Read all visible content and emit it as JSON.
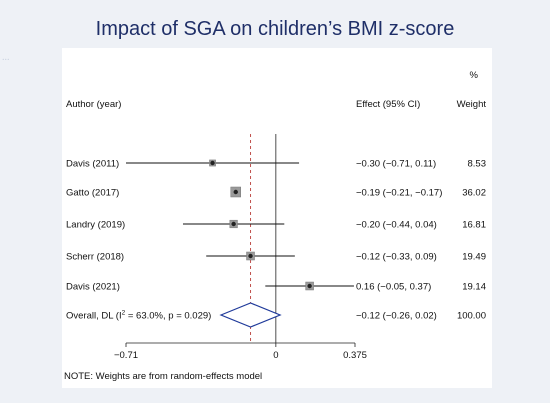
{
  "page": {
    "title": "Impact of SGA on children’s BMI z-score",
    "background_color": "#eef1f6",
    "title_color": "#1f2f68"
  },
  "chart_data": {
    "type": "forest",
    "header": {
      "author": "Author (year)",
      "effect": "Effect (95% CI)",
      "weight_unit": "%",
      "weight": "Weight"
    },
    "studies": [
      {
        "label": "Davis (2011)",
        "effect": -0.3,
        "lo": -0.71,
        "hi": 0.11,
        "effect_text": "−0.30 (−0.71, 0.11)",
        "weight": 8.53,
        "weight_text": "8.53"
      },
      {
        "label": "Gatto (2017)",
        "effect": -0.19,
        "lo": -0.21,
        "hi": -0.17,
        "effect_text": "−0.19 (−0.21, −0.17)",
        "weight": 36.02,
        "weight_text": "36.02"
      },
      {
        "label": "Landry (2019)",
        "effect": -0.2,
        "lo": -0.44,
        "hi": 0.04,
        "effect_text": "−0.20 (−0.44, 0.04)",
        "weight": 16.81,
        "weight_text": "16.81"
      },
      {
        "label": "Scherr (2018)",
        "effect": -0.12,
        "lo": -0.33,
        "hi": 0.09,
        "effect_text": "−0.12 (−0.33, 0.09)",
        "weight": 19.49,
        "weight_text": "19.49"
      },
      {
        "label": "Davis (2021)",
        "effect": 0.16,
        "lo": -0.05,
        "hi": 0.37,
        "effect_text": "0.16 (−0.05, 0.37)",
        "weight": 19.14,
        "weight_text": "19.14"
      }
    ],
    "overall": {
      "label_main": "Overall, DL (I",
      "label_sup": "2",
      "label_rest": " = 63.0%, p = 0.029)",
      "effect": -0.12,
      "lo": -0.26,
      "hi": 0.02,
      "effect_text": "−0.12 (−0.26, 0.02)",
      "weight_text": "100.00"
    },
    "x_ticks": [
      {
        "value": -0.71,
        "label": "−0.71"
      },
      {
        "value": 0,
        "label": "0"
      },
      {
        "value": 0.375,
        "label": "0.375"
      }
    ],
    "null_line": 0,
    "note": "NOTE: Weights are from random-effects model",
    "colors": {
      "diamond": "#1f3a9a",
      "overall_line": "#c0504d",
      "marker": "#222222",
      "box": "#9a9a9a"
    }
  }
}
